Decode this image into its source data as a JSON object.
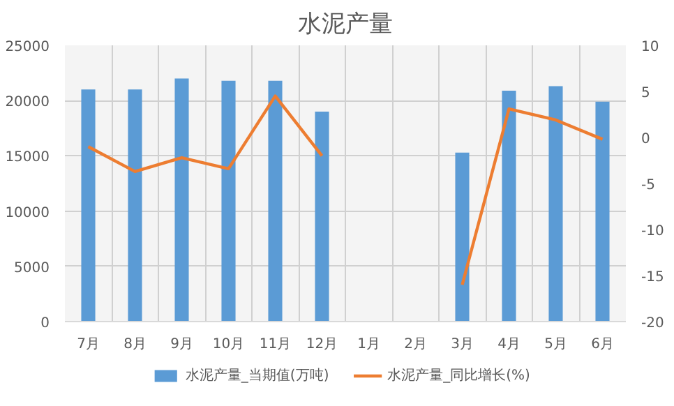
{
  "chart_data": {
    "type": "bar",
    "title": "水泥产量",
    "categories": [
      "7月",
      "8月",
      "9月",
      "10月",
      "11月",
      "12月",
      "1月",
      "2月",
      "3月",
      "4月",
      "5月",
      "6月"
    ],
    "series": [
      {
        "name": "水泥产量_当期值(万吨)",
        "color": "#5b9bd5",
        "values": [
          21000,
          21000,
          22000,
          21800,
          21800,
          19000,
          null,
          null,
          15300,
          20900,
          21300,
          19900
        ]
      },
      {
        "name": "水泥产量_同比增长(%)",
        "type": "line",
        "axis": "y2",
        "color": "#ed7d31",
        "values": [
          -1.0,
          -3.7,
          -2.2,
          -3.4,
          4.5,
          -2.0,
          null,
          null,
          -16.0,
          3.1,
          1.9,
          -0.2
        ]
      }
    ],
    "ylim": [
      0,
      25000
    ],
    "yticks": [
      0,
      5000,
      10000,
      15000,
      20000,
      25000
    ],
    "y2lim": [
      -20,
      10
    ],
    "y2ticks": [
      -20,
      -15,
      -10,
      -5,
      0,
      5,
      10
    ],
    "grid": true,
    "legend": "bottom",
    "marker": "none",
    "line_style": "solid"
  }
}
